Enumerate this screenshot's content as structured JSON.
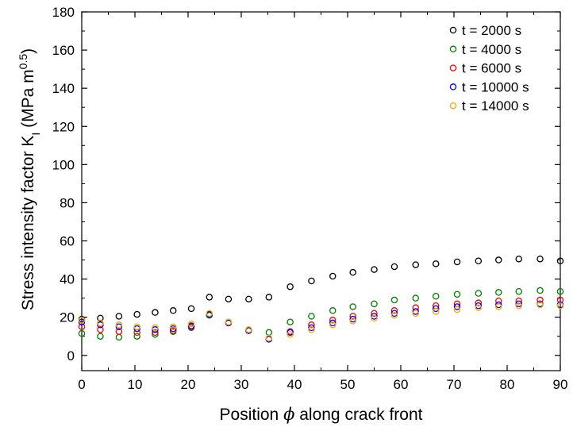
{
  "chart_data": {
    "type": "scatter",
    "title": "",
    "xlabel_parts": [
      "Position ",
      "ϕ",
      " along crack front"
    ],
    "ylabel_parts": [
      "Stress intensity factor K",
      "I",
      " (MPa m",
      "0.5",
      ")"
    ],
    "xlim": [
      0,
      90
    ],
    "ylim": [
      -8,
      180
    ],
    "xticks": [
      0,
      10,
      20,
      30,
      40,
      50,
      60,
      70,
      80,
      90
    ],
    "yticks": [
      0,
      20,
      40,
      60,
      80,
      100,
      120,
      140,
      160,
      180
    ],
    "grid": false,
    "legend_position": "top-right",
    "x": [
      0,
      3.5,
      7,
      10.4,
      13.8,
      17.2,
      20.6,
      24,
      27.6,
      31.4,
      35.2,
      39.2,
      43.2,
      47.2,
      51,
      55,
      58.8,
      62.8,
      66.6,
      70.6,
      74.6,
      78.4,
      82.2,
      86.2,
      90
    ],
    "series": [
      {
        "name": "t = 2000 s",
        "color": "#000000",
        "values": [
          19,
          19.5,
          20.5,
          21.5,
          22.5,
          23.5,
          24.5,
          30.5,
          29.5,
          29.5,
          30.5,
          36,
          39,
          41.5,
          43.5,
          45,
          46.5,
          47.5,
          48,
          49,
          49.5,
          50,
          50.5,
          50.5,
          49.5
        ]
      },
      {
        "name": "t = 4000 s",
        "color": "#008000",
        "values": [
          11.5,
          10,
          9.5,
          10,
          11,
          12.5,
          14.5,
          21,
          17,
          13,
          12,
          17.5,
          20.5,
          23.5,
          25.5,
          27,
          29,
          30,
          31,
          32,
          32.5,
          33,
          33.5,
          34,
          33.5
        ]
      },
      {
        "name": "t = 6000 s",
        "color": "#ff0000",
        "values": [
          15,
          13.5,
          12.5,
          12,
          12,
          13,
          15,
          21.5,
          17,
          13,
          8.5,
          12.5,
          16,
          18.5,
          20.5,
          22,
          23.5,
          25,
          26,
          27,
          27.5,
          28.5,
          28.5,
          29,
          29
        ]
      },
      {
        "name": "t = 10000 s",
        "color": "#0000ff",
        "values": [
          17.5,
          16,
          15,
          14,
          13.5,
          14,
          15.5,
          21.5,
          17,
          13,
          8.5,
          12,
          14.5,
          17,
          19,
          20.5,
          22,
          23,
          24.5,
          25.5,
          26,
          26.5,
          27,
          27,
          26.5
        ]
      },
      {
        "name": "t = 14000 s",
        "color": "#f5a800",
        "values": [
          18.5,
          17,
          16,
          15,
          14.5,
          15,
          16.5,
          22,
          17.5,
          13.5,
          9,
          11,
          13.5,
          16,
          18,
          19.5,
          21,
          22,
          23,
          24,
          25,
          25.5,
          26,
          26.5,
          26
        ]
      }
    ]
  }
}
